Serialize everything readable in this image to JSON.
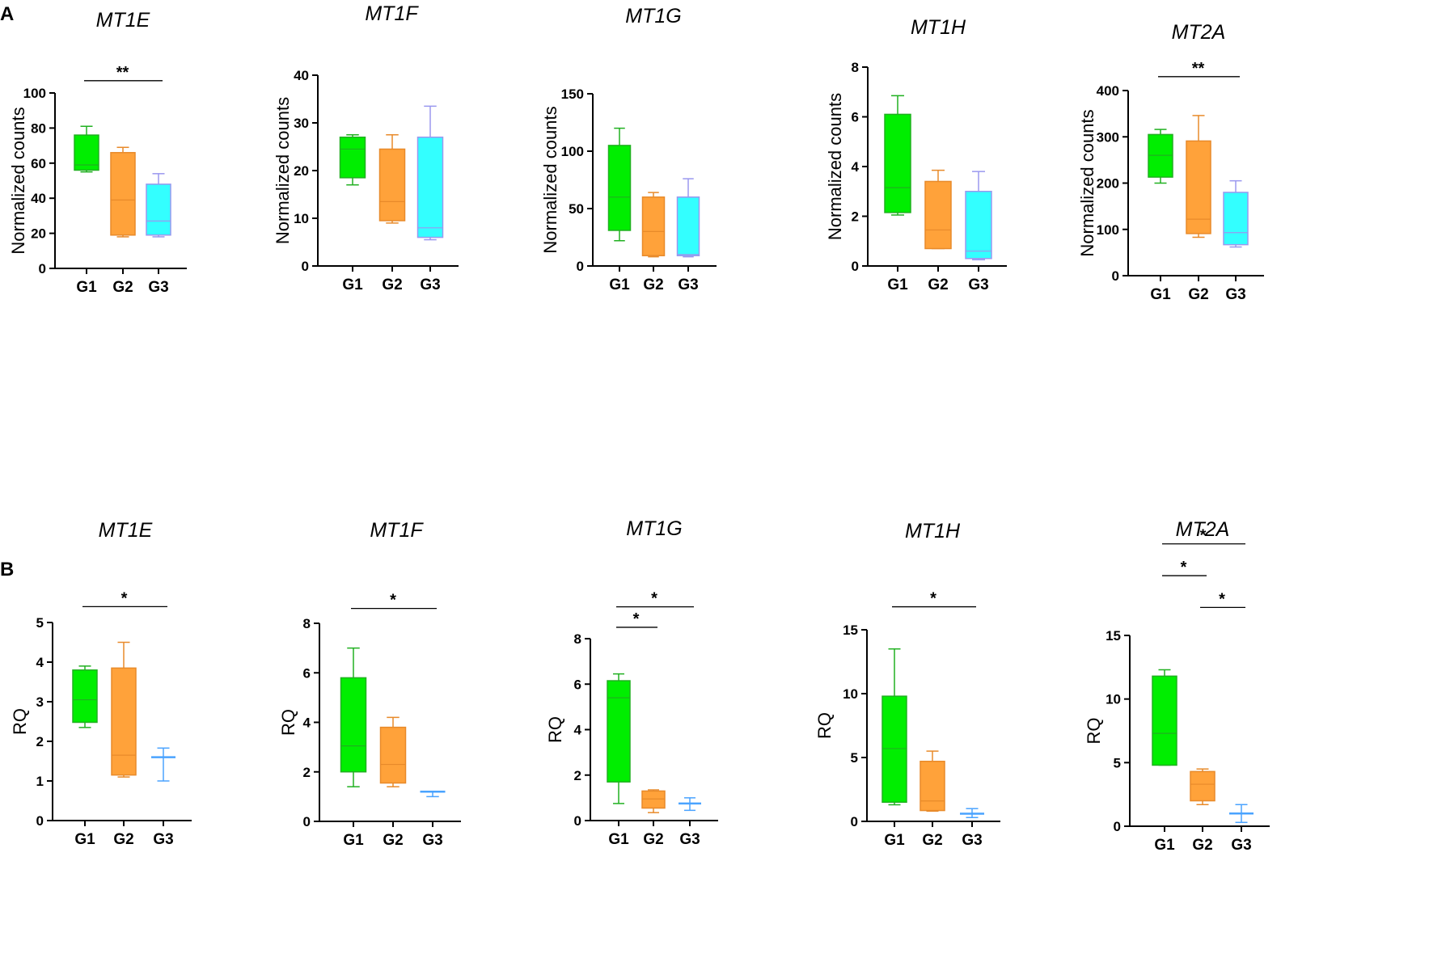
{
  "panels": [
    {
      "label": "A"
    },
    {
      "label": "B"
    }
  ],
  "colors": {
    "G1": "#00ee00",
    "G2": "#ffa23a",
    "G3": "#33ffff",
    "G3_line": "#4aa3ff",
    "axis": "#000000"
  },
  "chart_data": [
    {
      "type": "box",
      "panel": "A",
      "title": "MT1E",
      "ylabel": "Normalized counts",
      "categories": [
        "G1",
        "G2",
        "G3"
      ],
      "ylim": [
        0,
        100
      ],
      "yticks": [
        0,
        20,
        40,
        60,
        80,
        100
      ],
      "boxes": [
        {
          "min": 55,
          "q1": 56,
          "median": 59,
          "q3": 76,
          "max": 81
        },
        {
          "min": 18,
          "q1": 19,
          "median": 39,
          "q3": 66,
          "max": 69
        },
        {
          "min": 18,
          "q1": 19,
          "median": 27,
          "q3": 48,
          "max": 54
        }
      ],
      "significance": [
        {
          "from": 0,
          "to": 2,
          "label": "**",
          "y": 107
        }
      ]
    },
    {
      "type": "box",
      "panel": "A",
      "title": "MT1F",
      "ylabel": "Normalized counts",
      "categories": [
        "G1",
        "G2",
        "G3"
      ],
      "ylim": [
        0,
        40
      ],
      "yticks": [
        0,
        10,
        20,
        30,
        40
      ],
      "boxes": [
        {
          "min": 17,
          "q1": 18.5,
          "median": 24.5,
          "q3": 27,
          "max": 27.5
        },
        {
          "min": 9,
          "q1": 9.5,
          "median": 13.5,
          "q3": 24.5,
          "max": 27.5
        },
        {
          "min": 5.5,
          "q1": 6,
          "median": 8,
          "q3": 27,
          "max": 33.5
        }
      ],
      "significance": []
    },
    {
      "type": "box",
      "panel": "A",
      "title": "MT1G",
      "ylabel": "Normalized counts",
      "categories": [
        "G1",
        "G2",
        "G3"
      ],
      "ylim": [
        0,
        150
      ],
      "yticks": [
        0,
        50,
        100,
        150
      ],
      "boxes": [
        {
          "min": 22,
          "q1": 31,
          "median": 60,
          "q3": 105,
          "max": 120
        },
        {
          "min": 8,
          "q1": 9,
          "median": 30,
          "q3": 60,
          "max": 64
        },
        {
          "min": 8,
          "q1": 9,
          "median": 10,
          "q3": 60,
          "max": 76
        }
      ],
      "significance": []
    },
    {
      "type": "box",
      "panel": "A",
      "title": "MT1H",
      "ylabel": "Normalized counts",
      "categories": [
        "G1",
        "G2",
        "G3"
      ],
      "ylim": [
        0,
        8
      ],
      "yticks": [
        0,
        2,
        4,
        6,
        8
      ],
      "boxes": [
        {
          "min": 2.05,
          "q1": 2.15,
          "median": 3.15,
          "q3": 6.1,
          "max": 6.85
        },
        {
          "min": 0.7,
          "q1": 0.7,
          "median": 1.45,
          "q3": 3.4,
          "max": 3.85
        },
        {
          "min": 0.25,
          "q1": 0.3,
          "median": 0.6,
          "q3": 3.0,
          "max": 3.8
        }
      ],
      "significance": []
    },
    {
      "type": "box",
      "panel": "A",
      "title": "MT2A",
      "ylabel": "Normalized counts",
      "categories": [
        "G1",
        "G2",
        "G3"
      ],
      "ylim": [
        0,
        400
      ],
      "yticks": [
        0,
        100,
        200,
        300,
        400
      ],
      "boxes": [
        {
          "min": 200,
          "q1": 213,
          "median": 260,
          "q3": 305,
          "max": 316
        },
        {
          "min": 83,
          "q1": 91,
          "median": 122,
          "q3": 291,
          "max": 346
        },
        {
          "min": 62,
          "q1": 67,
          "median": 93,
          "q3": 180,
          "max": 205
        }
      ],
      "significance": [
        {
          "from": 0,
          "to": 2,
          "label": "**",
          "y": 430
        }
      ]
    },
    {
      "type": "box",
      "panel": "B",
      "title": "MT1E",
      "ylabel": "RQ",
      "categories": [
        "G1",
        "G2",
        "G3"
      ],
      "ylim": [
        0,
        5
      ],
      "yticks": [
        0,
        1,
        2,
        3,
        4,
        5
      ],
      "boxes": [
        {
          "min": 2.35,
          "q1": 2.48,
          "median": 3.05,
          "q3": 3.8,
          "max": 3.9
        },
        {
          "min": 1.1,
          "q1": 1.15,
          "median": 1.65,
          "q3": 3.85,
          "max": 4.5
        },
        {
          "min": 1.0,
          "q1": 1.6,
          "median": 1.6,
          "q3": 1.6,
          "max": 1.83
        }
      ],
      "significance": [
        {
          "from": 0,
          "to": 2,
          "label": "*",
          "y": 5.4
        }
      ]
    },
    {
      "type": "box",
      "panel": "B",
      "title": "MT1F",
      "ylabel": "RQ",
      "categories": [
        "G1",
        "G2",
        "G3"
      ],
      "ylim": [
        0,
        8
      ],
      "yticks": [
        0,
        2,
        4,
        6,
        8
      ],
      "boxes": [
        {
          "min": 1.4,
          "q1": 2.0,
          "median": 3.05,
          "q3": 5.8,
          "max": 7.0
        },
        {
          "min": 1.4,
          "q1": 1.55,
          "median": 2.3,
          "q3": 3.8,
          "max": 4.2
        },
        {
          "min": 1.0,
          "q1": 1.2,
          "median": 1.2,
          "q3": 1.2,
          "max": 1.2
        }
      ],
      "significance": [
        {
          "from": 0,
          "to": 2,
          "label": "*",
          "y": 8.6
        }
      ]
    },
    {
      "type": "box",
      "panel": "B",
      "title": "MT1G",
      "ylabel": "RQ",
      "categories": [
        "G1",
        "G2",
        "G3"
      ],
      "ylim": [
        0,
        8
      ],
      "yticks": [
        0,
        2,
        4,
        6,
        8
      ],
      "boxes": [
        {
          "min": 0.75,
          "q1": 1.7,
          "median": 5.4,
          "q3": 6.15,
          "max": 6.45
        },
        {
          "min": 0.35,
          "q1": 0.55,
          "median": 0.95,
          "q3": 1.3,
          "max": 1.35
        },
        {
          "min": 0.45,
          "q1": 0.75,
          "median": 0.75,
          "q3": 0.75,
          "max": 1.0
        }
      ],
      "significance": [
        {
          "from": 0,
          "to": 1,
          "label": "*",
          "y": 8.5
        },
        {
          "from": 0,
          "to": 2,
          "label": "*",
          "y": 9.4
        }
      ]
    },
    {
      "type": "box",
      "panel": "B",
      "title": "MT1H",
      "ylabel": "RQ",
      "categories": [
        "G1",
        "G2",
        "G3"
      ],
      "ylim": [
        0,
        15
      ],
      "yticks": [
        0,
        5,
        10,
        15
      ],
      "boxes": [
        {
          "min": 1.3,
          "q1": 1.5,
          "median": 5.7,
          "q3": 9.8,
          "max": 13.5
        },
        {
          "min": 0.8,
          "q1": 0.85,
          "median": 1.6,
          "q3": 4.7,
          "max": 5.5
        },
        {
          "min": 0.3,
          "q1": 0.6,
          "median": 0.6,
          "q3": 0.6,
          "max": 1.0
        }
      ],
      "significance": [
        {
          "from": 0,
          "to": 2,
          "label": "*",
          "y": 16.8
        }
      ]
    },
    {
      "type": "box",
      "panel": "B",
      "title": "MT2A",
      "ylabel": "RQ",
      "categories": [
        "G1",
        "G2",
        "G3"
      ],
      "ylim": [
        0,
        15
      ],
      "yticks": [
        0,
        5,
        10,
        15
      ],
      "boxes": [
        {
          "min": 4.8,
          "q1": 4.8,
          "median": 7.3,
          "q3": 11.8,
          "max": 12.3
        },
        {
          "min": 1.7,
          "q1": 2.0,
          "median": 3.3,
          "q3": 4.3,
          "max": 4.5
        },
        {
          "min": 0.3,
          "q1": 1.0,
          "median": 1.0,
          "q3": 1.0,
          "max": 1.7
        }
      ],
      "significance": [
        {
          "from": 1,
          "to": 2,
          "label": "*",
          "y": 17.2
        },
        {
          "from": 0,
          "to": 1,
          "label": "*",
          "y": 19.7
        },
        {
          "from": 0,
          "to": 2,
          "label": "*",
          "y": 22.2
        }
      ]
    }
  ]
}
